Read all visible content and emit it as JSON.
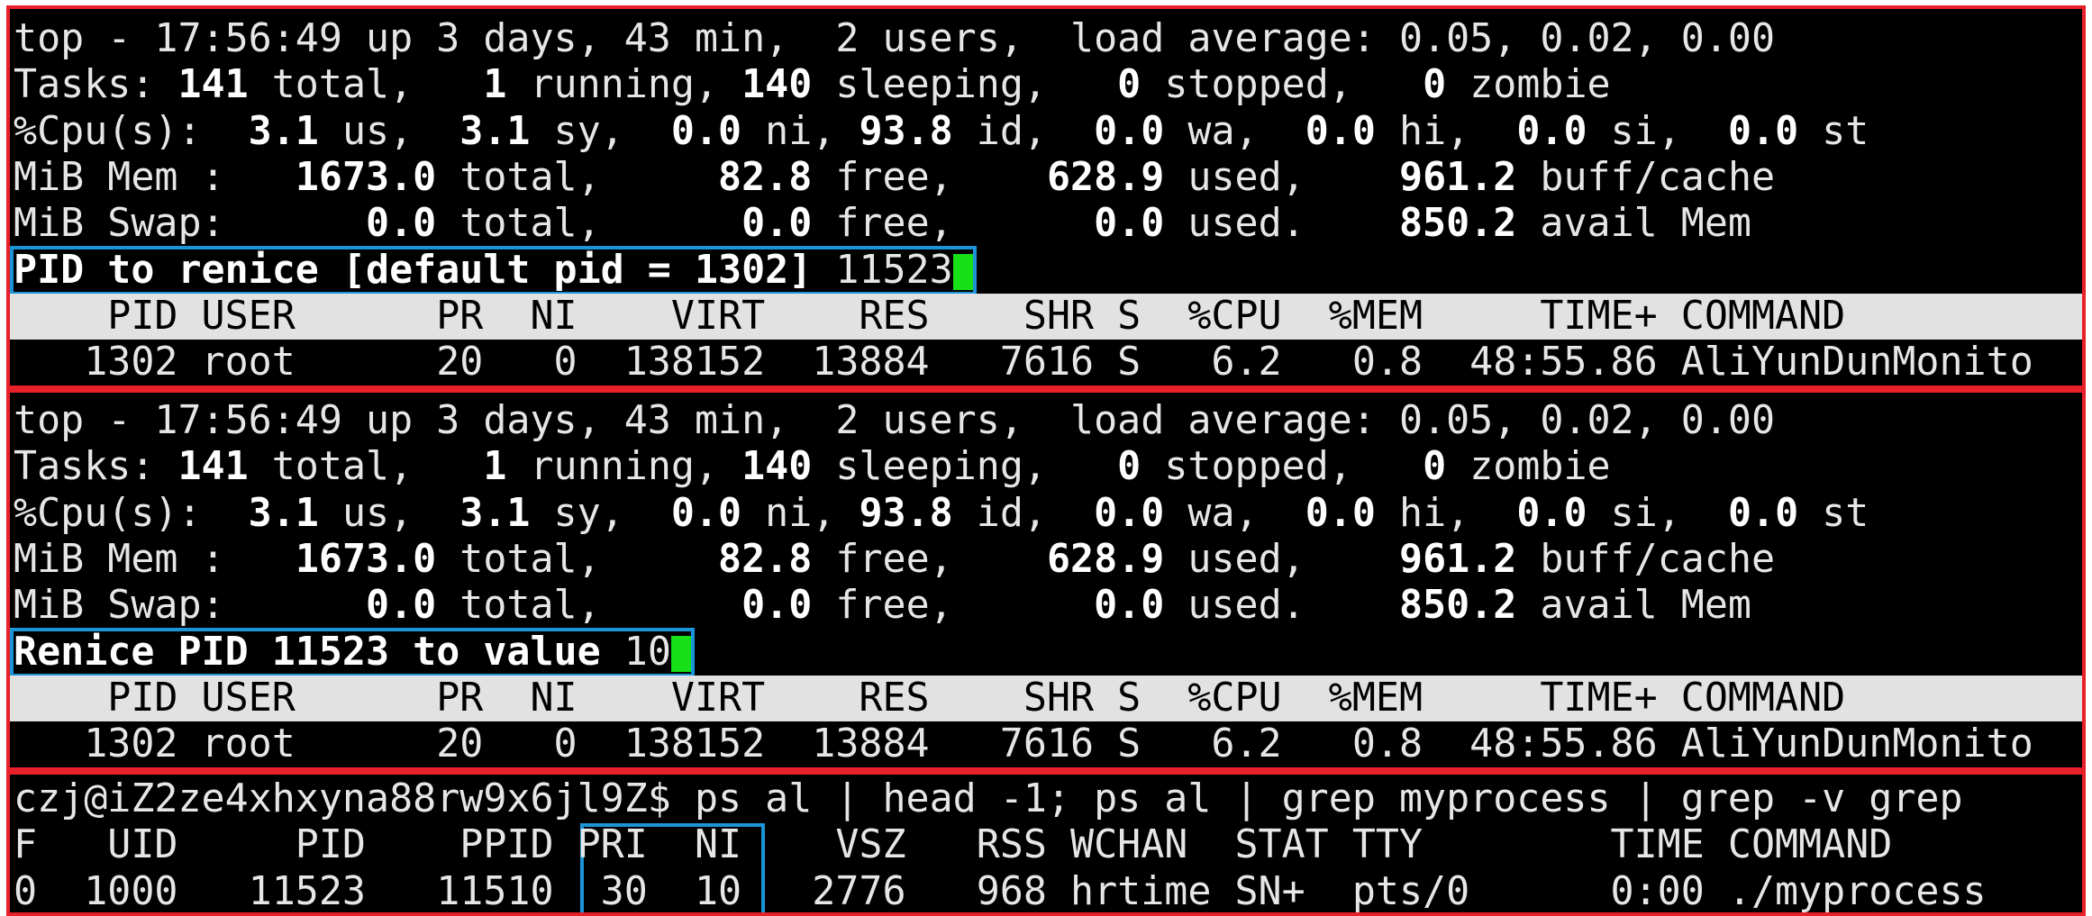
{
  "panels": [
    {
      "summary": [
        [
          {
            "text": "top - 17:56:49 up 3 days, 43 min,  2 users,  load average: 0.05, 0.02, 0.00",
            "bold": false
          }
        ],
        [
          {
            "text": "Tasks: ",
            "bold": false
          },
          {
            "text": "141",
            "bold": true
          },
          {
            "text": " total,   ",
            "bold": false
          },
          {
            "text": "1",
            "bold": true
          },
          {
            "text": " running, ",
            "bold": false
          },
          {
            "text": "140",
            "bold": true
          },
          {
            "text": " sleeping,   ",
            "bold": false
          },
          {
            "text": "0",
            "bold": true
          },
          {
            "text": " stopped,   ",
            "bold": false
          },
          {
            "text": "0",
            "bold": true
          },
          {
            "text": " zombie",
            "bold": false
          }
        ],
        [
          {
            "text": "%Cpu(s):  ",
            "bold": false
          },
          {
            "text": "3.1",
            "bold": true
          },
          {
            "text": " us,  ",
            "bold": false
          },
          {
            "text": "3.1",
            "bold": true
          },
          {
            "text": " sy,  ",
            "bold": false
          },
          {
            "text": "0.0",
            "bold": true
          },
          {
            "text": " ni, ",
            "bold": false
          },
          {
            "text": "93.8",
            "bold": true
          },
          {
            "text": " id,  ",
            "bold": false
          },
          {
            "text": "0.0",
            "bold": true
          },
          {
            "text": " wa,  ",
            "bold": false
          },
          {
            "text": "0.0",
            "bold": true
          },
          {
            "text": " hi,  ",
            "bold": false
          },
          {
            "text": "0.0",
            "bold": true
          },
          {
            "text": " si,  ",
            "bold": false
          },
          {
            "text": "0.0",
            "bold": true
          },
          {
            "text": " st",
            "bold": false
          }
        ],
        [
          {
            "text": "MiB Mem :   ",
            "bold": false
          },
          {
            "text": "1673.0",
            "bold": true
          },
          {
            "text": " total,     ",
            "bold": false
          },
          {
            "text": "82.8",
            "bold": true
          },
          {
            "text": " free,    ",
            "bold": false
          },
          {
            "text": "628.9",
            "bold": true
          },
          {
            "text": " used,    ",
            "bold": false
          },
          {
            "text": "961.2",
            "bold": true
          },
          {
            "text": " buff/cache",
            "bold": false
          }
        ],
        [
          {
            "text": "MiB Swap:      ",
            "bold": false
          },
          {
            "text": "0.0",
            "bold": true
          },
          {
            "text": " total,      ",
            "bold": false
          },
          {
            "text": "0.0",
            "bold": true
          },
          {
            "text": " free,      ",
            "bold": false
          },
          {
            "text": "0.0",
            "bold": true
          },
          {
            "text": " used.    ",
            "bold": false
          },
          {
            "text": "850.2",
            "bold": true
          },
          {
            "text": " avail Mem",
            "bold": false
          }
        ]
      ],
      "prompt": [
        {
          "text": "PID to renice [default pid = 1302]",
          "bold": true
        },
        {
          "text": " 11523",
          "bold": false
        }
      ],
      "columns": "    PID USER      PR  NI    VIRT    RES    SHR S  %CPU  %MEM     TIME+ COMMAND",
      "process": "   1302 root      20   0  138152  13884   7616 S   6.2   0.8  48:55.86 AliYunDunMonito"
    },
    {
      "summary": [
        [
          {
            "text": "top - 17:56:49 up 3 days, 43 min,  2 users,  load average: 0.05, 0.02, 0.00",
            "bold": false
          }
        ],
        [
          {
            "text": "Tasks: ",
            "bold": false
          },
          {
            "text": "141",
            "bold": true
          },
          {
            "text": " total,   ",
            "bold": false
          },
          {
            "text": "1",
            "bold": true
          },
          {
            "text": " running, ",
            "bold": false
          },
          {
            "text": "140",
            "bold": true
          },
          {
            "text": " sleeping,   ",
            "bold": false
          },
          {
            "text": "0",
            "bold": true
          },
          {
            "text": " stopped,   ",
            "bold": false
          },
          {
            "text": "0",
            "bold": true
          },
          {
            "text": " zombie",
            "bold": false
          }
        ],
        [
          {
            "text": "%Cpu(s):  ",
            "bold": false
          },
          {
            "text": "3.1",
            "bold": true
          },
          {
            "text": " us,  ",
            "bold": false
          },
          {
            "text": "3.1",
            "bold": true
          },
          {
            "text": " sy,  ",
            "bold": false
          },
          {
            "text": "0.0",
            "bold": true
          },
          {
            "text": " ni, ",
            "bold": false
          },
          {
            "text": "93.8",
            "bold": true
          },
          {
            "text": " id,  ",
            "bold": false
          },
          {
            "text": "0.0",
            "bold": true
          },
          {
            "text": " wa,  ",
            "bold": false
          },
          {
            "text": "0.0",
            "bold": true
          },
          {
            "text": " hi,  ",
            "bold": false
          },
          {
            "text": "0.0",
            "bold": true
          },
          {
            "text": " si,  ",
            "bold": false
          },
          {
            "text": "0.0",
            "bold": true
          },
          {
            "text": " st",
            "bold": false
          }
        ],
        [
          {
            "text": "MiB Mem :   ",
            "bold": false
          },
          {
            "text": "1673.0",
            "bold": true
          },
          {
            "text": " total,     ",
            "bold": false
          },
          {
            "text": "82.8",
            "bold": true
          },
          {
            "text": " free,    ",
            "bold": false
          },
          {
            "text": "628.9",
            "bold": true
          },
          {
            "text": " used,    ",
            "bold": false
          },
          {
            "text": "961.2",
            "bold": true
          },
          {
            "text": " buff/cache",
            "bold": false
          }
        ],
        [
          {
            "text": "MiB Swap:      ",
            "bold": false
          },
          {
            "text": "0.0",
            "bold": true
          },
          {
            "text": " total,      ",
            "bold": false
          },
          {
            "text": "0.0",
            "bold": true
          },
          {
            "text": " free,      ",
            "bold": false
          },
          {
            "text": "0.0",
            "bold": true
          },
          {
            "text": " used.    ",
            "bold": false
          },
          {
            "text": "850.2",
            "bold": true
          },
          {
            "text": " avail Mem",
            "bold": false
          }
        ]
      ],
      "prompt": [
        {
          "text": "Renice PID 11523 to value",
          "bold": true
        },
        {
          "text": " 10",
          "bold": false
        }
      ],
      "columns": "    PID USER      PR  NI    VIRT    RES    SHR S  %CPU  %MEM     TIME+ COMMAND",
      "process": "   1302 root      20   0  138152  13884   7616 S   6.2   0.8  48:55.86 AliYunDunMonito"
    },
    {
      "command": "czj@iZ2ze4xhxyna88rw9x6jl9Z$ ps al | head -1; ps al | grep myprocess | grep -v grep",
      "columns": "F   UID     PID    PPID PRI  NI    VSZ   RSS WCHAN  STAT TTY        TIME COMMAND",
      "process": "0  1000   11523   11510  30  10   2776   968 hrtime SN+  pts/0      0:00 ./myprocess"
    }
  ]
}
